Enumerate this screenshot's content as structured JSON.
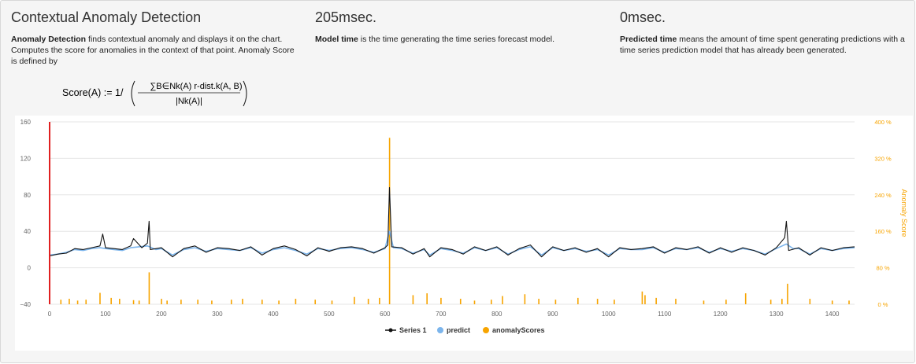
{
  "columns": [
    {
      "title": "Contextual Anomaly Detection",
      "bold": "Anomaly Detection",
      "text": " finds contextual anomaly and displays it on the chart. Computes the score for anomalies in the context of that point. Anomaly Score is defined by"
    },
    {
      "title": "205msec.",
      "bold": "Model time",
      "text": " is the time generating the time series forecast model."
    },
    {
      "title": "0msec.",
      "bold": "Predicted time",
      "text": " means the amount of time spent generating predictions with a time series prediction model that has already been generated."
    }
  ],
  "formula": {
    "lhs": "Score(A) := 1/",
    "numerator": "∑B∈Nk(A) r-dist.k(A, B)",
    "denominator": "|Nk(A)|"
  },
  "chart_data": {
    "type": "line",
    "title": "",
    "xlabel": "",
    "ylabel": "",
    "y2label": "Anomaly Score",
    "xlim": [
      0,
      1440
    ],
    "ylim": [
      -40,
      160
    ],
    "y2lim": [
      0,
      400
    ],
    "x_ticks": [
      "0",
      "100",
      "200",
      "300",
      "400",
      "500",
      "600",
      "700",
      "800",
      "900",
      "1000",
      "1100",
      "1200",
      "1300",
      "1400"
    ],
    "y_ticks": [
      "160",
      "120",
      "80",
      "40",
      "0",
      "−40"
    ],
    "y2_ticks": [
      "400 %",
      "320 %",
      "240 %",
      "160 %",
      "80 %",
      "0 %"
    ],
    "grid": true,
    "legend_position": "bottom",
    "plot_band": {
      "x": 0,
      "color": "#e02020"
    },
    "series": [
      {
        "name": "Series 1",
        "color": "#111111",
        "x": [
          0,
          15,
          30,
          45,
          60,
          75,
          90,
          95,
          100,
          115,
          130,
          145,
          150,
          165,
          175,
          178,
          180,
          200,
          220,
          240,
          260,
          280,
          300,
          320,
          340,
          360,
          380,
          400,
          420,
          440,
          460,
          480,
          500,
          520,
          540,
          560,
          580,
          600,
          605,
          608,
          612,
          630,
          650,
          670,
          680,
          700,
          720,
          740,
          760,
          780,
          800,
          820,
          840,
          860,
          880,
          900,
          920,
          940,
          960,
          980,
          1000,
          1020,
          1040,
          1060,
          1080,
          1100,
          1120,
          1140,
          1160,
          1180,
          1200,
          1220,
          1240,
          1260,
          1280,
          1300,
          1315,
          1318,
          1322,
          1340,
          1360,
          1380,
          1400,
          1420,
          1440
        ],
        "values": [
          13,
          15,
          16,
          21,
          20,
          22,
          24,
          37,
          22,
          21,
          20,
          24,
          32,
          22,
          27,
          51,
          20,
          22,
          12,
          21,
          24,
          17,
          22,
          21,
          19,
          23,
          14,
          21,
          24,
          20,
          13,
          22,
          18,
          22,
          23,
          21,
          16,
          22,
          25,
          88,
          23,
          22,
          15,
          21,
          12,
          22,
          20,
          15,
          23,
          19,
          23,
          14,
          21,
          25,
          12,
          23,
          19,
          22,
          17,
          21,
          12,
          22,
          20,
          21,
          23,
          16,
          22,
          20,
          23,
          16,
          22,
          17,
          22,
          19,
          14,
          22,
          33,
          51,
          19,
          22,
          14,
          22,
          19,
          22,
          23
        ]
      },
      {
        "name": "predict",
        "color": "#7cb5ec",
        "x": [
          0,
          15,
          30,
          45,
          60,
          75,
          90,
          100,
          115,
          130,
          145,
          160,
          175,
          190,
          200,
          220,
          240,
          260,
          280,
          300,
          320,
          340,
          360,
          380,
          400,
          420,
          440,
          460,
          480,
          500,
          520,
          540,
          560,
          580,
          600,
          608,
          615,
          630,
          650,
          670,
          680,
          700,
          720,
          740,
          760,
          780,
          800,
          820,
          840,
          860,
          880,
          900,
          920,
          940,
          960,
          980,
          1000,
          1020,
          1040,
          1060,
          1080,
          1100,
          1120,
          1140,
          1160,
          1180,
          1200,
          1220,
          1240,
          1260,
          1280,
          1300,
          1318,
          1330,
          1340,
          1360,
          1380,
          1400,
          1420,
          1440
        ],
        "values": [
          14,
          15,
          17,
          20,
          19,
          21,
          22,
          21,
          20,
          19,
          22,
          23,
          24,
          20,
          21,
          14,
          20,
          22,
          18,
          21,
          20,
          19,
          22,
          16,
          20,
          22,
          19,
          15,
          21,
          19,
          21,
          22,
          20,
          17,
          21,
          40,
          22,
          21,
          16,
          20,
          14,
          21,
          19,
          16,
          22,
          19,
          22,
          15,
          20,
          23,
          14,
          22,
          19,
          21,
          18,
          20,
          14,
          21,
          20,
          20,
          22,
          17,
          21,
          20,
          22,
          17,
          21,
          18,
          21,
          19,
          15,
          21,
          26,
          21,
          21,
          15,
          21,
          19,
          21,
          22
        ]
      },
      {
        "name": "anomalyScores",
        "color": "#f7a400",
        "axis": "y2",
        "x": [
          20,
          35,
          50,
          65,
          90,
          110,
          125,
          150,
          160,
          178,
          200,
          210,
          235,
          265,
          290,
          325,
          345,
          380,
          410,
          440,
          475,
          505,
          545,
          570,
          590,
          608,
          650,
          675,
          700,
          735,
          760,
          790,
          810,
          850,
          875,
          905,
          945,
          980,
          1010,
          1060,
          1065,
          1085,
          1120,
          1170,
          1210,
          1245,
          1290,
          1310,
          1320,
          1360,
          1400,
          1430
        ],
        "values": [
          10,
          12,
          8,
          10,
          25,
          14,
          12,
          9,
          8,
          70,
          12,
          8,
          10,
          10,
          8,
          10,
          12,
          10,
          8,
          12,
          10,
          8,
          16,
          12,
          14,
          365,
          20,
          24,
          14,
          12,
          8,
          10,
          18,
          22,
          12,
          10,
          14,
          12,
          10,
          28,
          20,
          14,
          12,
          8,
          10,
          24,
          10,
          12,
          45,
          12,
          8,
          8
        ]
      }
    ]
  }
}
